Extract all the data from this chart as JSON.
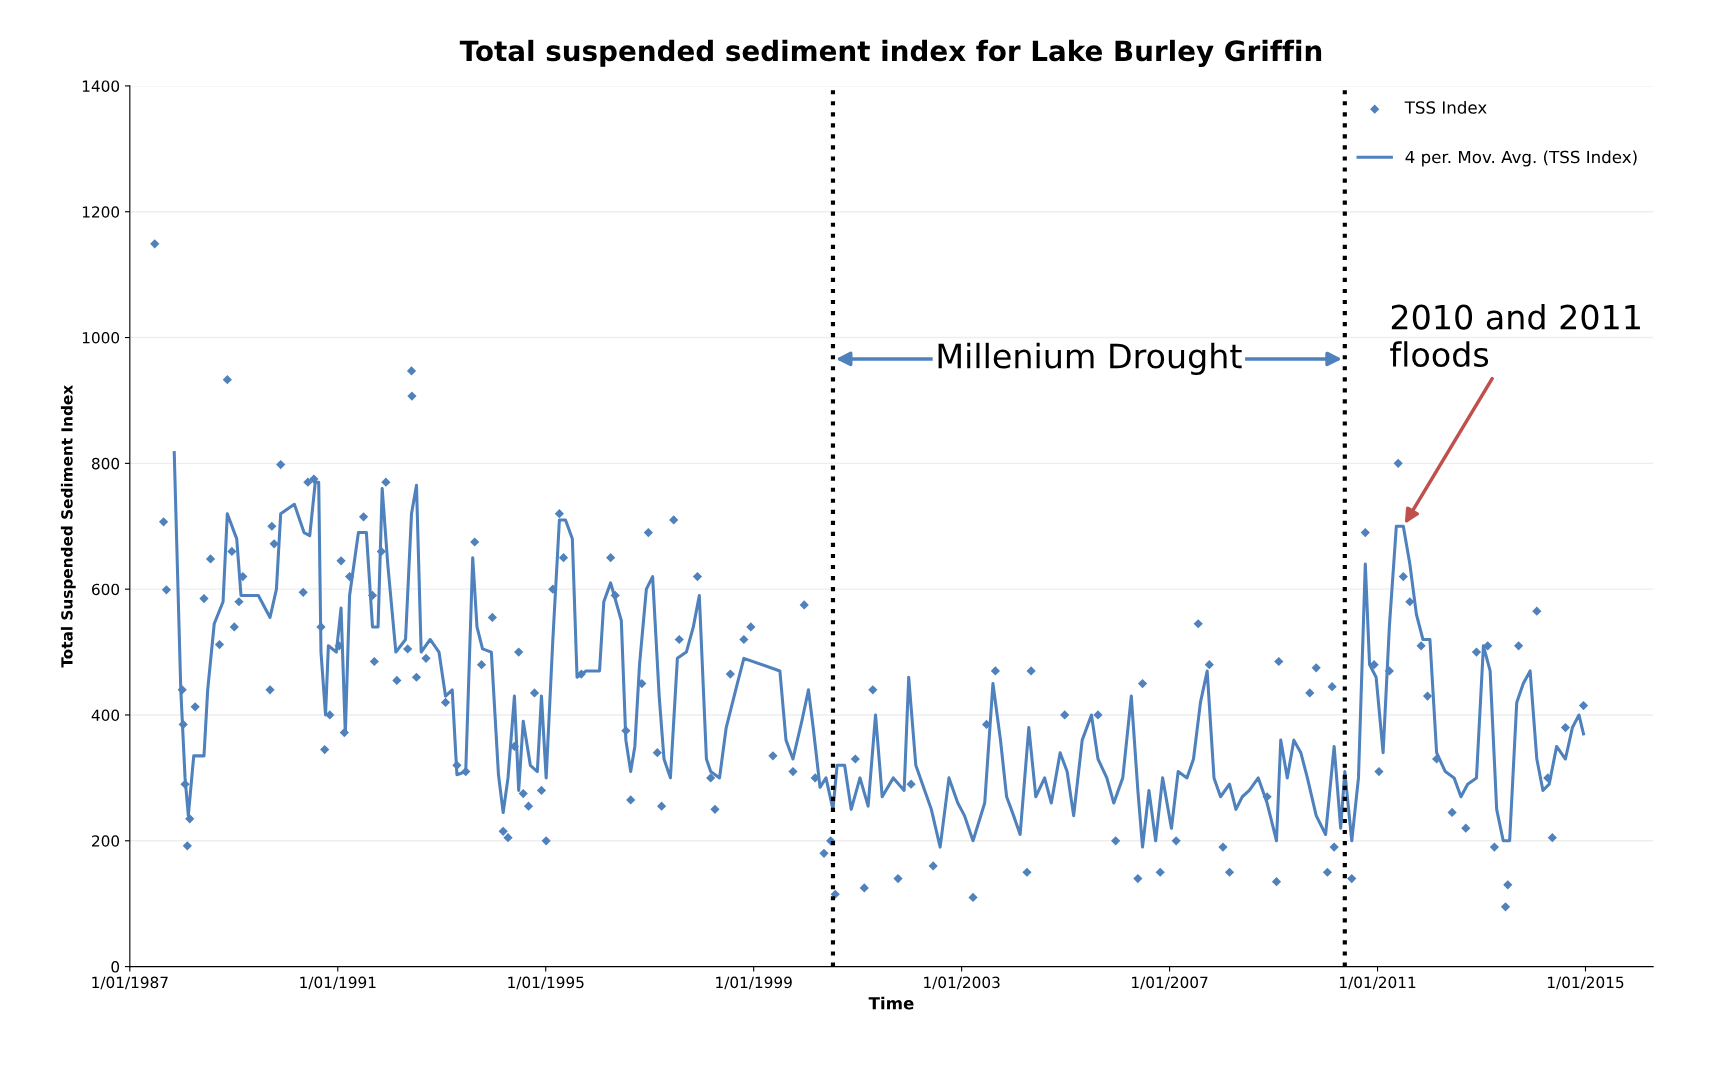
{
  "chart_data": {
    "type": "scatter",
    "title": "Total suspended sediment index for Lake Burley Griffin",
    "xlabel": "Time",
    "ylabel": "Total Suspended Sediment Index",
    "xlim": [
      "1987-01-01",
      "2016-04-20"
    ],
    "xticks": [
      {
        "value": "1987-01-01",
        "label": "1/01/1987"
      },
      {
        "value": "1991-01-01",
        "label": "1/01/1991"
      },
      {
        "value": "1995-01-01",
        "label": "1/01/1995"
      },
      {
        "value": "1999-01-01",
        "label": "1/01/1999"
      },
      {
        "value": "2003-01-01",
        "label": "1/01/2003"
      },
      {
        "value": "2007-01-01",
        "label": "1/01/2007"
      },
      {
        "value": "2011-01-01",
        "label": "1/01/2011"
      },
      {
        "value": "2015-01-01",
        "label": "1/01/2015"
      }
    ],
    "ylim": [
      0,
      1400
    ],
    "yticks": [
      0,
      200,
      400,
      600,
      800,
      1000,
      1200,
      1400
    ],
    "grid": "y",
    "legend": "top right",
    "series": [
      {
        "name": "TSS Index",
        "marker": "diamond",
        "color": "#4f81bd",
        "x": [
          "1987-06-25",
          "1987-08-26",
          "1987-09-15",
          "1988-01-04",
          "1988-01-11",
          "1988-01-24",
          "1988-02-09",
          "1988-02-26",
          "1988-04-04",
          "1988-06-05",
          "1988-07-21",
          "1988-09-22",
          "1988-11-16",
          "1988-12-18",
          "1989-01-04",
          "1989-02-06",
          "1989-03-05",
          "1989-09-12",
          "1989-09-25",
          "1989-10-11",
          "1989-11-26",
          "1990-05-03",
          "1990-06-05",
          "1990-07-17",
          "1990-09-05",
          "1990-10-01",
          "1990-11-06",
          "1991-01-11",
          "1991-01-24",
          "1991-02-16",
          "1991-03-25",
          "1991-07-01",
          "1991-09-02",
          "1991-09-15",
          "1991-11-03",
          "1991-12-05",
          "1992-02-20",
          "1992-05-06",
          "1992-06-02",
          "1992-06-05",
          "1992-07-07",
          "1992-09-12",
          "1993-01-27",
          "1993-04-17",
          "1993-06-18",
          "1993-08-20",
          "1993-10-07",
          "1993-12-22",
          "1994-03-08",
          "1994-04-11",
          "1994-05-26",
          "1994-06-25",
          "1994-07-27",
          "1994-09-02",
          "1994-10-14",
          "1994-12-02",
          "1995-01-04",
          "1995-02-20",
          "1995-04-07",
          "1995-05-06",
          "1995-09-08",
          "1996-04-01",
          "1996-05-03",
          "1996-07-17",
          "1996-08-20",
          "1996-11-06",
          "1996-12-22",
          "1997-02-23",
          "1997-03-25",
          "1997-06-18",
          "1997-07-27",
          "1997-12-02",
          "1998-03-05",
          "1998-04-04",
          "1998-07-21",
          "1998-10-24",
          "1998-12-12",
          "1999-05-16",
          "1999-10-04",
          "1999-12-22",
          "2000-03-08",
          "2000-05-09",
          "2000-06-25",
          "2000-07-27",
          "2000-12-15",
          "2001-02-16",
          "2001-04-17",
          "2001-10-11",
          "2002-01-11",
          "2002-06-15",
          "2003-03-22",
          "2003-06-25",
          "2003-08-26",
          "2004-04-04",
          "2004-05-03",
          "2004-12-25",
          "2005-08-16",
          "2005-12-18",
          "2006-05-23",
          "2006-06-25",
          "2006-10-27",
          "2007-02-16",
          "2007-07-21",
          "2007-10-07",
          "2008-01-11",
          "2008-02-26",
          "2008-11-16",
          "2009-01-21",
          "2009-02-06",
          "2009-09-12",
          "2009-10-27",
          "2010-01-14",
          "2010-02-16",
          "2010-03-02",
          "2010-07-04",
          "2010-10-07",
          "2010-12-08",
          "2011-01-11",
          "2011-03-25",
          "2011-05-26",
          "2011-07-01",
          "2011-08-16",
          "2011-11-03",
          "2011-12-18",
          "2012-02-20",
          "2012-06-08",
          "2012-09-12",
          "2012-11-26",
          "2013-02-13",
          "2013-04-01",
          "2013-06-18",
          "2013-07-04",
          "2013-09-18",
          "2014-01-24",
          "2014-04-11",
          "2014-05-13",
          "2014-08-13",
          "2014-12-18"
        ],
        "values": [
          1149,
          707,
          599,
          440,
          385,
          290,
          192,
          235,
          413,
          585,
          648,
          512,
          933,
          660,
          540,
          580,
          620,
          440,
          700,
          672,
          798,
          595,
          770,
          775,
          540,
          345,
          400,
          510,
          645,
          372,
          620,
          715,
          590,
          485,
          660,
          770,
          455,
          505,
          947,
          907,
          460,
          490,
          420,
          320,
          310,
          675,
          480,
          555,
          215,
          205,
          350,
          500,
          275,
          255,
          435,
          280,
          200,
          600,
          720,
          650,
          465,
          650,
          590,
          375,
          265,
          450,
          690,
          340,
          255,
          710,
          520,
          620,
          300,
          250,
          465,
          520,
          540,
          335,
          310,
          575,
          300,
          180,
          200,
          115,
          330,
          125,
          440,
          140,
          290,
          160,
          110,
          385,
          470,
          150,
          470,
          400,
          400,
          200,
          140,
          450,
          150,
          200,
          545,
          480,
          190,
          150,
          270,
          135,
          485,
          435,
          475,
          150,
          445,
          190,
          140,
          690,
          480,
          310,
          470,
          800,
          620,
          580,
          510,
          430,
          330,
          245,
          220,
          500,
          510,
          190,
          95,
          130,
          510,
          565,
          300,
          205,
          380,
          415
        ]
      },
      {
        "name": "4 per. Mov. Avg. (TSS Index)",
        "type": "line",
        "marker": "none",
        "line_style": "solid",
        "color": "#4f81bd",
        "x": [
          "1987-11-09",
          "1987-12-25",
          "1988-01-24",
          "1988-02-16",
          "1988-03-25",
          "1988-06-05",
          "1988-07-01",
          "1988-08-16",
          "1988-10-17",
          "1988-11-16",
          "1989-01-21",
          "1989-02-20",
          "1989-06-22",
          "1989-09-12",
          "1989-10-27",
          "1989-11-26",
          "1990-03-02",
          "1990-05-09",
          "1990-06-18",
          "1990-07-27",
          "1990-08-20",
          "1990-09-05",
          "1990-10-07",
          "1990-10-27",
          "1990-12-22",
          "1991-01-24",
          "1991-02-23",
          "1991-03-25",
          "1991-05-26",
          "1991-07-21",
          "1991-09-02",
          "1991-10-11",
          "1991-11-09",
          "1991-12-18",
          "1992-02-13",
          "1992-04-21",
          "1992-06-02",
          "1992-07-07",
          "1992-08-09",
          "1992-10-11",
          "1992-12-12",
          "1993-01-27",
          "1993-03-15",
          "1993-04-17",
          "1993-06-18",
          "1993-08-06",
          "1993-09-05",
          "1993-10-14",
          "1993-12-15",
          "1994-02-03",
          "1994-03-08",
          "1994-04-11",
          "1994-05-26",
          "1994-06-25",
          "1994-07-27",
          "1994-09-15",
          "1994-11-03",
          "1994-12-02",
          "1995-01-04",
          "1995-02-20",
          "1995-04-07",
          "1995-05-20",
          "1995-07-07",
          "1995-08-09",
          "1995-10-11",
          "1996-01-14",
          "1996-02-13",
          "1996-04-01",
          "1996-06-15",
          "1996-07-17",
          "1996-08-20",
          "1996-09-18",
          "1996-10-21",
          "1996-12-08",
          "1997-01-21",
          "1997-03-08",
          "1997-04-11",
          "1997-05-26",
          "1997-07-14",
          "1997-09-15",
          "1997-11-03",
          "1997-12-15",
          "1998-02-03",
          "1998-03-05",
          "1998-05-06",
          "1998-06-22",
          "1998-09-08",
          "1998-10-24",
          "1999-07-04",
          "1999-08-16",
          "1999-10-04",
          "1999-12-05",
          "2000-01-21",
          "2000-02-23",
          "2000-04-11",
          "2000-05-23",
          "2000-07-11",
          "2000-08-09",
          "2000-10-01",
          "2000-11-16",
          "2001-01-17",
          "2001-03-15",
          "2001-05-06",
          "2001-06-22",
          "2001-09-08",
          "2001-11-23",
          "2001-12-25",
          "2002-02-13",
          "2002-04-01",
          "2002-06-02",
          "2002-08-03",
          "2002-10-04",
          "2002-12-05",
          "2003-01-21",
          "2003-03-22",
          "2003-06-12",
          "2003-08-09",
          "2003-10-01",
          "2003-11-13",
          "2004-01-01",
          "2004-02-16",
          "2004-04-17",
          "2004-06-05",
          "2004-08-06",
          "2004-09-22",
          "2004-11-23",
          "2005-01-11",
          "2005-02-26",
          "2005-04-27",
          "2005-07-01",
          "2005-08-16",
          "2005-10-17",
          "2005-12-05",
          "2006-02-06",
          "2006-04-07",
          "2006-05-23",
          "2006-06-25",
          "2006-08-09",
          "2006-09-25",
          "2006-11-13",
          "2007-01-14",
          "2007-03-02",
          "2007-05-03",
          "2007-06-18",
          "2007-08-06",
          "2007-09-22",
          "2007-11-09",
          "2007-12-25",
          "2008-02-26",
          "2008-04-11",
          "2008-05-26",
          "2008-07-14",
          "2008-09-15",
          "2008-11-16",
          "2009-01-21",
          "2009-02-20",
          "2009-04-07",
          "2009-05-23",
          "2009-07-11",
          "2009-08-26",
          "2009-10-27",
          "2010-01-01",
          "2010-03-02",
          "2010-04-17",
          "2010-05-16",
          "2010-07-04",
          "2010-08-20",
          "2010-10-07",
          "2010-11-06",
          "2010-12-22",
          "2011-02-09",
          "2011-03-25",
          "2011-05-13",
          "2011-07-01",
          "2011-08-16",
          "2011-10-01",
          "2011-11-16",
          "2012-01-04",
          "2012-02-20",
          "2012-04-21",
          "2012-06-22",
          "2012-08-09",
          "2012-09-25",
          "2012-11-26",
          "2013-01-14",
          "2013-03-02",
          "2013-04-17",
          "2013-06-02",
          "2013-07-17",
          "2013-09-05",
          "2013-10-21",
          "2013-12-08",
          "2014-01-24",
          "2014-03-08",
          "2014-04-21",
          "2014-06-12",
          "2014-08-13",
          "2014-10-01",
          "2014-11-16",
          "2014-12-18"
        ],
        "values": [
          817,
          440,
          300,
          240,
          335,
          335,
          440,
          545,
          580,
          720,
          680,
          590,
          590,
          555,
          600,
          720,
          735,
          690,
          685,
          770,
          770,
          500,
          400,
          510,
          500,
          570,
          370,
          590,
          690,
          690,
          540,
          540,
          760,
          640,
          500,
          520,
          720,
          765,
          500,
          520,
          500,
          430,
          440,
          305,
          310,
          650,
          540,
          505,
          500,
          305,
          245,
          300,
          430,
          280,
          390,
          320,
          310,
          430,
          300,
          520,
          710,
          710,
          680,
          460,
          470,
          470,
          580,
          610,
          550,
          360,
          310,
          350,
          480,
          600,
          620,
          430,
          330,
          300,
          490,
          500,
          540,
          590,
          330,
          310,
          300,
          380,
          450,
          490,
          470,
          360,
          330,
          390,
          440,
          380,
          285,
          300,
          250,
          320,
          320,
          250,
          300,
          255,
          400,
          270,
          300,
          280,
          460,
          320,
          290,
          250,
          190,
          300,
          260,
          240,
          200,
          260,
          450,
          360,
          270,
          240,
          210,
          380,
          270,
          300,
          260,
          340,
          310,
          240,
          360,
          400,
          330,
          300,
          260,
          300,
          430,
          280,
          190,
          280,
          200,
          300,
          220,
          310,
          300,
          330,
          420,
          470,
          300,
          270,
          290,
          250,
          270,
          280,
          300,
          260,
          200,
          360,
          300,
          360,
          340,
          300,
          240,
          210,
          350,
          220,
          310,
          200,
          300,
          640,
          480,
          460,
          340,
          540,
          700,
          700,
          640,
          560,
          520,
          520,
          340,
          310,
          300,
          270,
          290,
          300,
          510,
          470,
          250,
          200,
          200,
          420,
          450,
          470,
          330,
          280,
          290,
          350,
          330,
          380,
          400,
          370
        ]
      }
    ],
    "ref_lines": [
      {
        "axis": "x",
        "value": "2000-07-11",
        "color": "#000000",
        "line_style": "dotted"
      },
      {
        "axis": "x",
        "value": "2010-05-16",
        "color": "#000000",
        "line_style": "dotted"
      }
    ],
    "annotations": [
      "Millenium Drought",
      {
        "text": "2010 and 2011 floods",
        "x": "2011-07-01",
        "y": 700
      }
    ]
  }
}
